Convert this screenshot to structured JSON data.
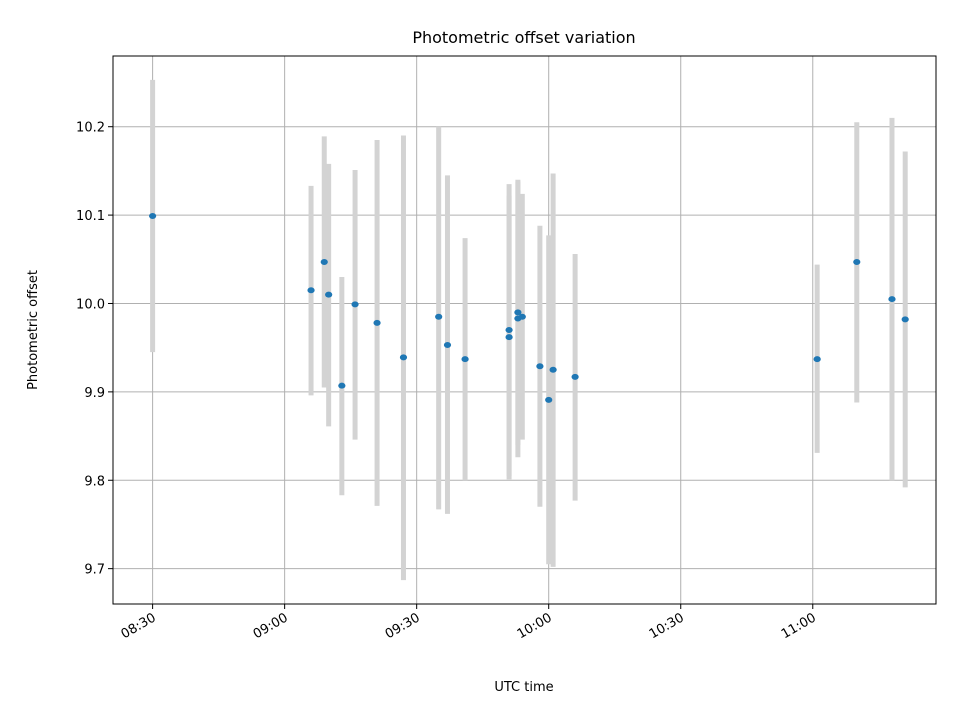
{
  "chart_data": {
    "type": "scatter",
    "title": "Photometric offset variation",
    "xlabel": "UTC time",
    "ylabel": "Photometric offset",
    "x_ticks": [
      "08:30",
      "09:00",
      "09:30",
      "10:00",
      "10:30",
      "11:00"
    ],
    "y_ticks": [
      "9.7",
      "9.8",
      "9.9",
      "10.0",
      "10.1",
      "10.2"
    ],
    "xlim": [
      "08:21",
      "11:28"
    ],
    "ylim": [
      9.66,
      10.28
    ],
    "grid": true,
    "colors": {
      "point": "#1f77b4",
      "errorbar": "#d3d3d3",
      "grid": "#b0b0b0"
    },
    "points": [
      {
        "x": "08:30",
        "y": 10.099,
        "err_low": 9.945,
        "err_high": 10.253
      },
      {
        "x": "09:06",
        "y": 10.015,
        "err_low": 9.896,
        "err_high": 10.133
      },
      {
        "x": "09:09",
        "y": 10.047,
        "err_low": 9.905,
        "err_high": 10.189
      },
      {
        "x": "09:10",
        "y": 10.01,
        "err_low": 9.861,
        "err_high": 10.158
      },
      {
        "x": "09:13",
        "y": 9.907,
        "err_low": 9.783,
        "err_high": 10.03
      },
      {
        "x": "09:16",
        "y": 9.999,
        "err_low": 9.846,
        "err_high": 10.151
      },
      {
        "x": "09:21",
        "y": 9.978,
        "err_low": 9.771,
        "err_high": 10.185
      },
      {
        "x": "09:27",
        "y": 9.939,
        "err_low": 9.687,
        "err_high": 10.19
      },
      {
        "x": "09:35",
        "y": 9.985,
        "err_low": 9.767,
        "err_high": 10.2
      },
      {
        "x": "09:37",
        "y": 9.953,
        "err_low": 9.762,
        "err_high": 10.145
      },
      {
        "x": "09:41",
        "y": 9.937,
        "err_low": 9.8,
        "err_high": 10.074
      },
      {
        "x": "09:51",
        "y": 9.97,
        "err_low": 9.805,
        "err_high": 10.135
      },
      {
        "x": "09:51",
        "y": 9.962,
        "err_low": 9.801,
        "err_high": 10.122
      },
      {
        "x": "09:53",
        "y": 9.99,
        "err_low": 9.84,
        "err_high": 10.14
      },
      {
        "x": "09:53",
        "y": 9.983,
        "err_low": 9.826,
        "err_high": 10.138
      },
      {
        "x": "09:54",
        "y": 9.985,
        "err_low": 9.846,
        "err_high": 10.124
      },
      {
        "x": "09:58",
        "y": 9.929,
        "err_low": 9.77,
        "err_high": 10.088
      },
      {
        "x": "10:00",
        "y": 9.891,
        "err_low": 9.705,
        "err_high": 10.077
      },
      {
        "x": "10:01",
        "y": 9.925,
        "err_low": 9.702,
        "err_high": 10.147
      },
      {
        "x": "10:06",
        "y": 9.917,
        "err_low": 9.777,
        "err_high": 10.056
      },
      {
        "x": "11:01",
        "y": 9.937,
        "err_low": 9.831,
        "err_high": 10.044
      },
      {
        "x": "11:10",
        "y": 10.047,
        "err_low": 9.888,
        "err_high": 10.205
      },
      {
        "x": "11:18",
        "y": 10.005,
        "err_low": 9.8,
        "err_high": 10.21
      },
      {
        "x": "11:21",
        "y": 9.982,
        "err_low": 9.792,
        "err_high": 10.172
      }
    ]
  }
}
